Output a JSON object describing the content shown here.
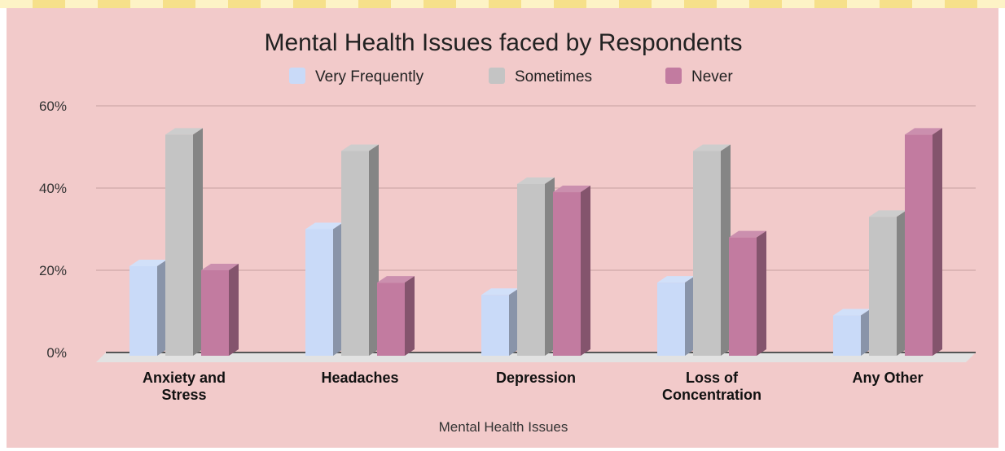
{
  "chart_data": {
    "type": "bar",
    "title": "Mental Health Issues faced by Respondents",
    "xlabel": "Mental Health Issues",
    "ylabel": "",
    "ylim": [
      0,
      60
    ],
    "yticks": [
      "0%",
      "20%",
      "40%",
      "60%"
    ],
    "categories": [
      [
        "Anxiety and",
        "Stress"
      ],
      [
        "Headaches"
      ],
      [
        "Depression"
      ],
      [
        "Loss of",
        "Concentration"
      ],
      [
        "Any Other"
      ]
    ],
    "series": [
      {
        "name": "Very Frequently",
        "color": "#c9daf8",
        "values": [
          21,
          30,
          14,
          17,
          9
        ]
      },
      {
        "name": "Sometimes",
        "color": "#c4c4c4",
        "values": [
          53,
          49,
          41,
          49,
          33
        ]
      },
      {
        "name": "Never",
        "color": "#c27ba0",
        "values": [
          20,
          17,
          39,
          28,
          53
        ]
      }
    ],
    "legend_position": "top",
    "grid": true,
    "style": "3d"
  }
}
